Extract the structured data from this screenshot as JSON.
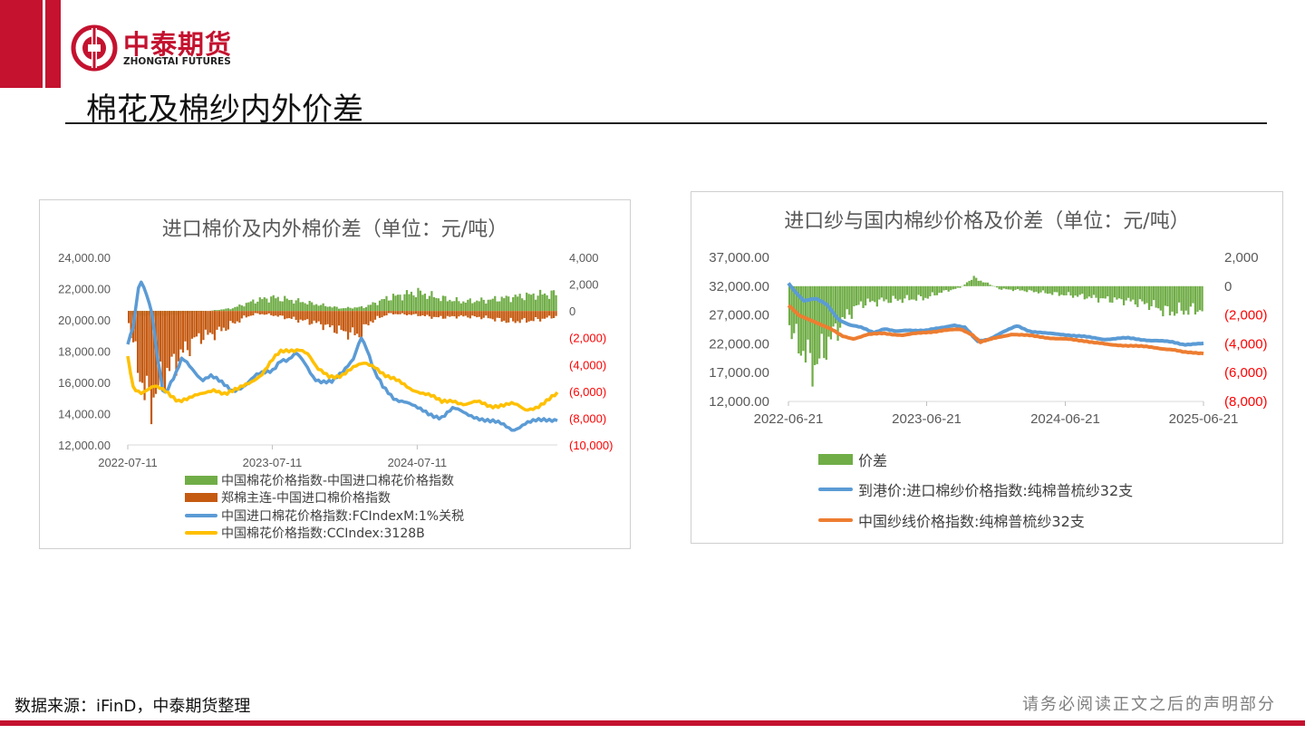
{
  "header": {
    "logo_cn": "中泰期货",
    "logo_en": "ZHONGTAI FUTURES",
    "page_title": "棉花及棉纱内外价差"
  },
  "colors": {
    "brand_red": "#c4122f",
    "green": "#70ad47",
    "rust": "#c55a11",
    "blue": "#5b9bd5",
    "yellow": "#ffc000",
    "orange": "#ed7d31",
    "negative_tick": "#ff0000"
  },
  "footer": {
    "source": "数据来源：iFinD，中泰期货整理",
    "disclaimer": "请务必阅读正文之后的声明部分"
  },
  "chart_data": [
    {
      "type": "line",
      "title": "进口棉价及内外棉价差（单位：元/吨）",
      "x_tick_labels": [
        "2022-07-11",
        "2023-07-11",
        "2024-07-11"
      ],
      "x_range": [
        "2022-07-11",
        "2025-06-30"
      ],
      "y_left_ticks": [
        "24,000.00",
        "22,000.00",
        "20,000.00",
        "18,000.00",
        "16,000.00",
        "14,000.00",
        "12,000.00"
      ],
      "y_left_range": [
        12000,
        24000
      ],
      "y_right_ticks": [
        "4,000",
        "2,000",
        "0",
        "(2,000)",
        "(4,000)",
        "(6,000)",
        "(8,000)",
        "(10,000)"
      ],
      "y_right_range": [
        -10000,
        4000
      ],
      "series": [
        {
          "name": "中国棉花价格指数-中国进口棉花价格指数",
          "kind": "bar",
          "axis": "right",
          "points": [
            [
              "2022-07-11",
              -200
            ],
            [
              "2022-09-01",
              -400
            ],
            [
              "2022-11-01",
              -300
            ],
            [
              "2023-01-01",
              -100
            ],
            [
              "2023-04-01",
              200
            ],
            [
              "2023-06-01",
              800
            ],
            [
              "2023-07-11",
              1000
            ],
            [
              "2023-09-01",
              800
            ],
            [
              "2023-11-01",
              500
            ],
            [
              "2024-01-01",
              200
            ],
            [
              "2024-03-01",
              300
            ],
            [
              "2024-05-01",
              1000
            ],
            [
              "2024-07-11",
              1400
            ],
            [
              "2024-09-01",
              1000
            ],
            [
              "2024-11-01",
              700
            ],
            [
              "2025-01-01",
              800
            ],
            [
              "2025-03-01",
              1000
            ],
            [
              "2025-05-01",
              1200
            ],
            [
              "2025-06-30",
              1300
            ]
          ]
        },
        {
          "name": "郑棉主连-中国进口棉价格指数",
          "kind": "bar",
          "axis": "right",
          "points": [
            [
              "2022-07-11",
              -500
            ],
            [
              "2022-08-01",
              -3500
            ],
            [
              "2022-09-01",
              -7000
            ],
            [
              "2022-10-01",
              -5500
            ],
            [
              "2022-11-01",
              -4000
            ],
            [
              "2022-12-01",
              -3000
            ],
            [
              "2023-01-01",
              -2000
            ],
            [
              "2023-02-01",
              -1800
            ],
            [
              "2023-03-01",
              -1500
            ],
            [
              "2023-04-01",
              -1000
            ],
            [
              "2023-05-01",
              -500
            ],
            [
              "2023-06-01",
              -200
            ],
            [
              "2023-07-11",
              -300
            ],
            [
              "2023-09-01",
              -600
            ],
            [
              "2023-11-01",
              -900
            ],
            [
              "2024-01-01",
              -1500
            ],
            [
              "2024-02-15",
              -1800
            ],
            [
              "2024-03-15",
              -800
            ],
            [
              "2024-05-01",
              -200
            ],
            [
              "2024-07-11",
              -300
            ],
            [
              "2024-09-01",
              -500
            ],
            [
              "2024-11-01",
              -400
            ],
            [
              "2025-01-01",
              -500
            ],
            [
              "2025-03-01",
              -800
            ],
            [
              "2025-05-01",
              -700
            ],
            [
              "2025-06-30",
              -400
            ]
          ]
        },
        {
          "name": "中国进口棉花价格指数:FCIndexM:1%关税",
          "kind": "line",
          "axis": "left",
          "points": [
            [
              "2022-07-11",
              18500
            ],
            [
              "2022-07-25",
              19500
            ],
            [
              "2022-08-10",
              22500
            ],
            [
              "2022-08-25",
              21800
            ],
            [
              "2022-09-10",
              20500
            ],
            [
              "2022-09-25",
              17500
            ],
            [
              "2022-10-10",
              15200
            ],
            [
              "2022-10-25",
              15800
            ],
            [
              "2022-11-10",
              16500
            ],
            [
              "2022-11-25",
              17500
            ],
            [
              "2022-12-10",
              17200
            ],
            [
              "2022-12-25",
              16800
            ],
            [
              "2023-01-15",
              16200
            ],
            [
              "2023-02-05",
              16400
            ],
            [
              "2023-03-01",
              16000
            ],
            [
              "2023-04-01",
              15500
            ],
            [
              "2023-05-01",
              15800
            ],
            [
              "2023-06-01",
              16400
            ],
            [
              "2023-07-11",
              16800
            ],
            [
              "2023-08-01",
              17500
            ],
            [
              "2023-08-20",
              17400
            ],
            [
              "2023-09-10",
              17800
            ],
            [
              "2023-10-01",
              17200
            ],
            [
              "2023-10-25",
              16300
            ],
            [
              "2023-11-15",
              16100
            ],
            [
              "2023-12-10",
              16000
            ],
            [
              "2024-01-05",
              16600
            ],
            [
              "2024-02-01",
              17600
            ],
            [
              "2024-02-20",
              19000
            ],
            [
              "2024-03-05",
              18200
            ],
            [
              "2024-03-25",
              16600
            ],
            [
              "2024-04-15",
              15700
            ],
            [
              "2024-05-15",
              15000
            ],
            [
              "2024-06-10",
              14800
            ],
            [
              "2024-07-11",
              14300
            ],
            [
              "2024-08-10",
              14000
            ],
            [
              "2024-09-10",
              13800
            ],
            [
              "2024-10-10",
              14300
            ],
            [
              "2024-11-10",
              14000
            ],
            [
              "2024-12-10",
              13800
            ],
            [
              "2025-01-10",
              13500
            ],
            [
              "2025-02-10",
              13300
            ],
            [
              "2025-03-10",
              13000
            ],
            [
              "2025-04-10",
              13400
            ],
            [
              "2025-05-10",
              13500
            ],
            [
              "2025-06-30",
              13700
            ]
          ]
        },
        {
          "name": "中国棉花价格指数:CCIndex:3128B",
          "kind": "line",
          "axis": "left",
          "points": [
            [
              "2022-07-11",
              17600
            ],
            [
              "2022-07-25",
              15700
            ],
            [
              "2022-08-15",
              15400
            ],
            [
              "2022-09-15",
              15700
            ],
            [
              "2022-10-15",
              15400
            ],
            [
              "2022-11-15",
              14900
            ],
            [
              "2022-12-15",
              15000
            ],
            [
              "2023-01-15",
              15200
            ],
            [
              "2023-02-15",
              15600
            ],
            [
              "2023-03-15",
              15300
            ],
            [
              "2023-04-15",
              15500
            ],
            [
              "2023-05-15",
              16000
            ],
            [
              "2023-06-15",
              16600
            ],
            [
              "2023-07-11",
              17400
            ],
            [
              "2023-08-01",
              17900
            ],
            [
              "2023-09-01",
              18100
            ],
            [
              "2023-09-20",
              18200
            ],
            [
              "2023-10-10",
              17800
            ],
            [
              "2023-11-01",
              16800
            ],
            [
              "2023-12-01",
              16400
            ],
            [
              "2024-01-01",
              16500
            ],
            [
              "2024-02-01",
              16900
            ],
            [
              "2024-03-01",
              17200
            ],
            [
              "2024-03-25",
              17100
            ],
            [
              "2024-04-25",
              16400
            ],
            [
              "2024-05-25",
              16000
            ],
            [
              "2024-06-25",
              15600
            ],
            [
              "2024-07-11",
              15500
            ],
            [
              "2024-08-10",
              15200
            ],
            [
              "2024-09-10",
              14700
            ],
            [
              "2024-10-10",
              14900
            ],
            [
              "2024-11-10",
              14600
            ],
            [
              "2024-12-10",
              14700
            ],
            [
              "2025-01-10",
              14500
            ],
            [
              "2025-02-10",
              14600
            ],
            [
              "2025-03-10",
              14600
            ],
            [
              "2025-04-10",
              14200
            ],
            [
              "2025-05-10",
              14500
            ],
            [
              "2025-06-30",
              15200
            ]
          ]
        }
      ]
    },
    {
      "type": "line",
      "title": "进口纱与国内棉纱价格及价差（单位：元/吨）",
      "x_tick_labels": [
        "2022-06-21",
        "2023-06-21",
        "2024-06-21",
        "2025-06-21"
      ],
      "x_range": [
        "2022-06-21",
        "2025-06-21"
      ],
      "y_left_ticks": [
        "37,000.00",
        "32,000.00",
        "27,000.00",
        "22,000.00",
        "17,000.00",
        "12,000.00"
      ],
      "y_left_range": [
        12000,
        37000
      ],
      "y_right_ticks": [
        "2,000",
        "0",
        "(2,000)",
        "(4,000)",
        "(6,000)",
        "(8,000)"
      ],
      "y_right_range": [
        -8000,
        2000
      ],
      "series": [
        {
          "name": "价差",
          "kind": "bar",
          "axis": "right",
          "points": [
            [
              "2022-06-21",
              -2500
            ],
            [
              "2022-07-10",
              -3800
            ],
            [
              "2022-08-01",
              -4500
            ],
            [
              "2022-08-20",
              -5500
            ],
            [
              "2022-09-10",
              -5200
            ],
            [
              "2022-10-01",
              -4000
            ],
            [
              "2022-11-01",
              -2800
            ],
            [
              "2022-12-01",
              -1800
            ],
            [
              "2023-01-01",
              -1200
            ],
            [
              "2023-03-01",
              -1000
            ],
            [
              "2023-05-01",
              -900
            ],
            [
              "2023-06-21",
              -800
            ],
            [
              "2023-08-01",
              -400
            ],
            [
              "2023-09-20",
              -100
            ],
            [
              "2023-10-20",
              600
            ],
            [
              "2023-11-20",
              300
            ],
            [
              "2024-01-01",
              -200
            ],
            [
              "2024-03-01",
              -300
            ],
            [
              "2024-06-21",
              -600
            ],
            [
              "2024-08-01",
              -700
            ],
            [
              "2024-10-01",
              -900
            ],
            [
              "2024-12-01",
              -1000
            ],
            [
              "2025-02-01",
              -1300
            ],
            [
              "2025-03-20",
              -1800
            ],
            [
              "2025-05-01",
              -1700
            ],
            [
              "2025-06-21",
              -1600
            ]
          ]
        },
        {
          "name": "到港价:进口棉纱价格指数:纯棉普梳纱32支",
          "kind": "line",
          "axis": "left",
          "points": [
            [
              "2022-06-21",
              32500
            ],
            [
              "2022-07-10",
              31000
            ],
            [
              "2022-08-01",
              29500
            ],
            [
              "2022-09-01",
              29800
            ],
            [
              "2022-10-01",
              28800
            ],
            [
              "2022-11-01",
              26200
            ],
            [
              "2022-12-01",
              25200
            ],
            [
              "2023-01-01",
              24800
            ],
            [
              "2023-02-01",
              24000
            ],
            [
              "2023-03-01",
              24600
            ],
            [
              "2023-04-01",
              24100
            ],
            [
              "2023-05-01",
              24400
            ],
            [
              "2023-06-21",
              24300
            ],
            [
              "2023-08-01",
              24800
            ],
            [
              "2023-09-01",
              25300
            ],
            [
              "2023-10-01",
              24800
            ],
            [
              "2023-11-01",
              22400
            ],
            [
              "2023-12-01",
              22800
            ],
            [
              "2024-01-01",
              23800
            ],
            [
              "2024-02-15",
              25100
            ],
            [
              "2024-03-20",
              24200
            ],
            [
              "2024-05-01",
              23800
            ],
            [
              "2024-06-21",
              23600
            ],
            [
              "2024-08-01",
              23300
            ],
            [
              "2024-10-01",
              22800
            ],
            [
              "2024-12-01",
              23000
            ],
            [
              "2025-02-01",
              22600
            ],
            [
              "2025-04-01",
              22300
            ],
            [
              "2025-05-01",
              21900
            ],
            [
              "2025-06-21",
              22000
            ]
          ]
        },
        {
          "name": "中国纱线价格指数:纯棉普梳纱32支",
          "kind": "line",
          "axis": "left",
          "points": [
            [
              "2022-06-21",
              28700
            ],
            [
              "2022-07-20",
              26800
            ],
            [
              "2022-09-01",
              25800
            ],
            [
              "2022-10-10",
              24600
            ],
            [
              "2022-11-10",
              23300
            ],
            [
              "2022-12-10",
              22900
            ],
            [
              "2023-01-15",
              23600
            ],
            [
              "2023-03-01",
              23800
            ],
            [
              "2023-04-20",
              23500
            ],
            [
              "2023-06-21",
              24000
            ],
            [
              "2023-08-01",
              24300
            ],
            [
              "2023-09-20",
              24500
            ],
            [
              "2023-10-20",
              23600
            ],
            [
              "2023-11-10",
              22300
            ],
            [
              "2023-12-15",
              22900
            ],
            [
              "2024-02-01",
              23700
            ],
            [
              "2024-03-20",
              23400
            ],
            [
              "2024-05-15",
              23000
            ],
            [
              "2024-06-21",
              22800
            ],
            [
              "2024-08-15",
              22500
            ],
            [
              "2024-10-15",
              21800
            ],
            [
              "2024-12-15",
              21700
            ],
            [
              "2025-02-15",
              21300
            ],
            [
              "2025-04-01",
              21000
            ],
            [
              "2025-05-01",
              20500
            ],
            [
              "2025-06-21",
              20400
            ]
          ]
        }
      ]
    }
  ]
}
